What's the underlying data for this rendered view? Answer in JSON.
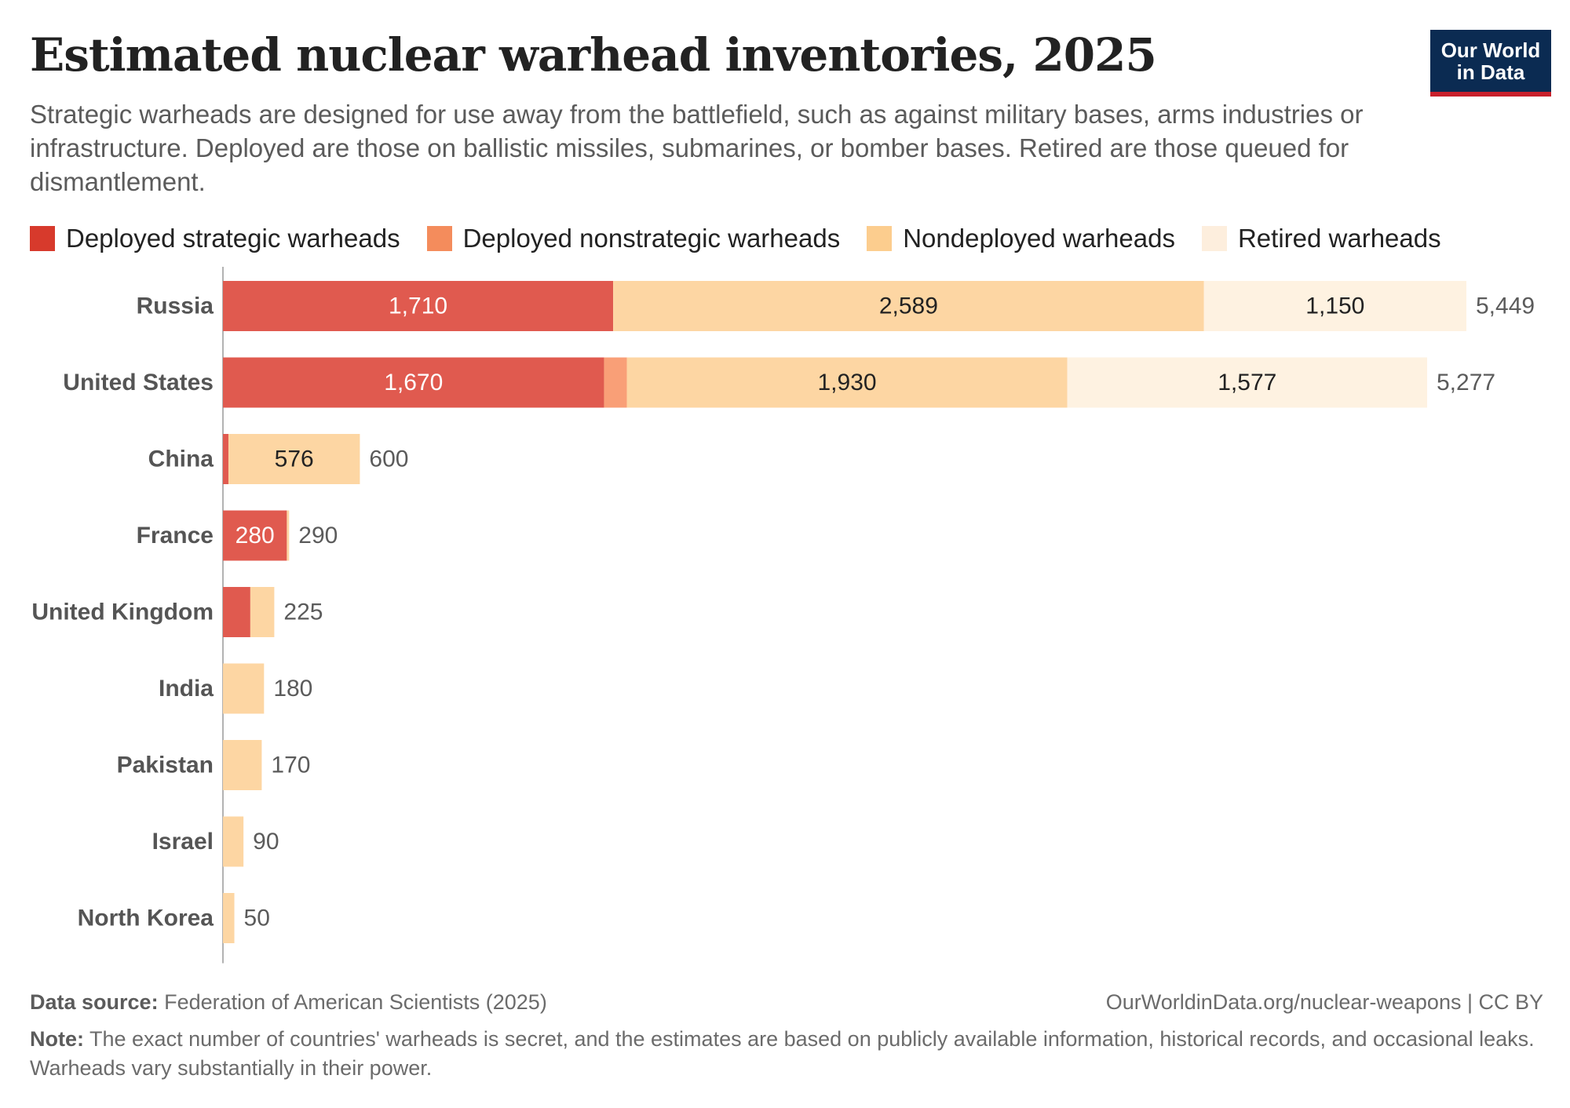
{
  "header": {
    "title": "Estimated nuclear warhead inventories, 2025",
    "subtitle": "Strategic warheads are designed for use away from the battlefield, such as against military bases, arms industries or infrastructure. Deployed are those on ballistic missiles, submarines, or bomber bases. Retired are those queued for dismantlement.",
    "logo_line1": "Our World",
    "logo_line2": "in Data"
  },
  "footer": {
    "source_label": "Data source:",
    "source_text": "Federation of American Scientists (2025)",
    "url": "OurWorldinData.org/nuclear-weapons | CC BY",
    "note_label": "Note:",
    "note_text": "The exact number of countries' warheads is secret, and the estimates are based on publicly available information, historical records, and occasional leaks. Warheads vary substantially in their power."
  },
  "chart_data": {
    "type": "bar",
    "orientation": "horizontal",
    "stacked": true,
    "categories": [
      "Russia",
      "United States",
      "China",
      "France",
      "United Kingdom",
      "India",
      "Pakistan",
      "Israel",
      "North Korea"
    ],
    "series": [
      {
        "name": "Deployed strategic warheads",
        "color": "#e05a4f",
        "legend_color": "#d73a2c",
        "values": [
          1710,
          1670,
          24,
          280,
          120,
          0,
          0,
          0,
          0
        ]
      },
      {
        "name": "Deployed nonstrategic warheads",
        "color": "#f99f77",
        "legend_color": "#f48c5c",
        "values": [
          0,
          100,
          0,
          0,
          0,
          0,
          0,
          0,
          0
        ]
      },
      {
        "name": "Nondeployed warheads",
        "color": "#fdd6a3",
        "legend_color": "#fccd8e",
        "values": [
          2589,
          1930,
          576,
          10,
          105,
          180,
          170,
          90,
          50
        ]
      },
      {
        "name": "Retired warheads",
        "color": "#fef2e1",
        "legend_color": "#fdeedd",
        "values": [
          1150,
          1577,
          0,
          0,
          0,
          0,
          0,
          0,
          0
        ]
      }
    ],
    "segment_labels": [
      [
        "1,710",
        "",
        "2,589",
        "1,150"
      ],
      [
        "1,670",
        "",
        "1,930",
        "1,577"
      ],
      [
        "",
        "",
        "576",
        ""
      ],
      [
        "280",
        "",
        "",
        ""
      ],
      [
        "",
        "",
        "",
        ""
      ],
      [
        "",
        "",
        "",
        ""
      ],
      [
        "",
        "",
        "",
        ""
      ],
      [
        "",
        "",
        "",
        ""
      ],
      [
        "",
        "",
        "",
        ""
      ]
    ],
    "totals": [
      5449,
      5277,
      600,
      290,
      225,
      180,
      170,
      90,
      50
    ],
    "total_labels": [
      "5,449",
      "5,277",
      "600",
      "290",
      "225",
      "180",
      "170",
      "90",
      "50"
    ],
    "xlim": [
      0,
      5449
    ],
    "legend_position": "top",
    "grid": false
  }
}
